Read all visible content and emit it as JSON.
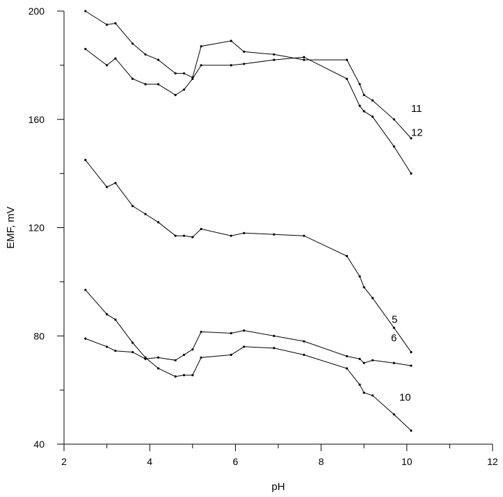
{
  "chart_data": {
    "type": "line",
    "title": "",
    "xlabel": "pH",
    "ylabel": "EMF, mV",
    "xlim": [
      2,
      12
    ],
    "ylim": [
      40,
      200
    ],
    "x_ticks": [
      2,
      4,
      6,
      8,
      10,
      12
    ],
    "x_minor_ticks": [
      3,
      5,
      7,
      9,
      11
    ],
    "y_ticks": [
      40,
      80,
      120,
      160,
      200
    ],
    "y_minor_ticks": [
      60,
      100,
      140,
      180
    ],
    "grid": false,
    "legend": "none (series labelled inline)",
    "series": [
      {
        "name": "11",
        "x": [
          2.5,
          3.0,
          3.2,
          3.6,
          3.9,
          4.2,
          4.6,
          4.8,
          5.0,
          5.2,
          5.9,
          6.2,
          6.9,
          7.6,
          8.6,
          8.9,
          9.0,
          9.2,
          9.7,
          10.1
        ],
        "y": [
          200,
          195,
          195.5,
          188,
          184,
          182,
          177,
          177,
          175.5,
          187,
          189,
          185,
          184,
          182,
          182,
          173,
          169,
          167,
          160,
          153
        ]
      },
      {
        "name": "12",
        "x": [
          2.5,
          3.0,
          3.2,
          3.6,
          3.9,
          4.2,
          4.6,
          4.8,
          5.0,
          5.2,
          5.9,
          6.2,
          6.9,
          7.6,
          8.6,
          8.9,
          9.0,
          9.2,
          9.7,
          10.1
        ],
        "y": [
          186,
          180,
          182.5,
          175,
          173,
          173,
          169,
          171,
          175,
          180,
          180,
          180.5,
          182,
          183,
          175,
          165,
          163,
          161,
          150,
          140
        ]
      },
      {
        "name": "5",
        "x": [
          2.5,
          3.0,
          3.2,
          3.6,
          3.9,
          4.2,
          4.6,
          4.8,
          5.0,
          5.2,
          5.9,
          6.2,
          6.9,
          7.6,
          8.6,
          8.9,
          9.0,
          9.2,
          9.7,
          10.1
        ],
        "y": [
          145,
          135,
          136.5,
          128,
          125,
          122,
          117,
          117,
          116.5,
          119.5,
          117,
          118,
          117.5,
          117,
          109.5,
          102,
          98,
          94,
          83,
          74
        ]
      },
      {
        "name": "6",
        "x": [
          2.5,
          3.0,
          3.2,
          3.6,
          3.9,
          4.2,
          4.6,
          4.8,
          5.0,
          5.2,
          5.9,
          6.2,
          6.9,
          7.6,
          8.6,
          8.9,
          9.0,
          9.2,
          9.7,
          10.1
        ],
        "y": [
          79,
          76,
          74.5,
          74,
          71.5,
          72,
          71,
          73,
          75,
          81.5,
          81,
          82,
          80,
          78,
          72.5,
          71.5,
          70,
          71,
          70,
          69
        ]
      },
      {
        "name": "10",
        "x": [
          2.5,
          3.0,
          3.2,
          3.6,
          3.9,
          4.2,
          4.6,
          4.8,
          5.0,
          5.2,
          5.9,
          6.2,
          6.9,
          7.6,
          8.6,
          8.9,
          9.0,
          9.2,
          9.7,
          10.1
        ],
        "y": [
          97,
          88,
          86,
          77.5,
          72,
          68,
          65,
          65.5,
          65.5,
          72,
          73,
          76,
          75.5,
          73,
          68,
          62,
          59,
          58,
          51,
          45
        ]
      }
    ]
  }
}
